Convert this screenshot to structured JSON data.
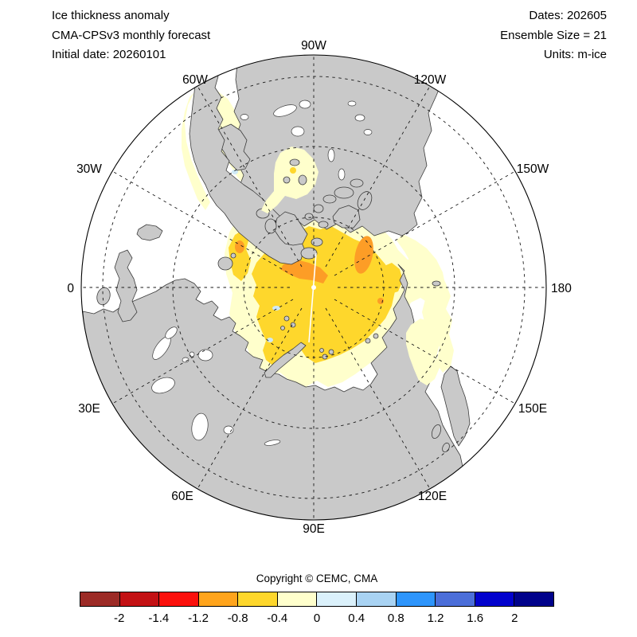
{
  "header": {
    "left": {
      "line1": "Ice thickness anomaly",
      "line2": "CMA-CPSv3 monthly forecast",
      "line3": "Initial date: 20260101"
    },
    "right": {
      "line1": "Dates: 202605",
      "line2": "Ensemble Size = 21",
      "line3": "Units: m-ice"
    }
  },
  "map": {
    "copyright": "Copyright © CEMC, CMA",
    "lon_labels": [
      "90W",
      "60W",
      "120W",
      "30W",
      "150W",
      "0",
      "180",
      "30E",
      "150E",
      "60E",
      "120E",
      "90E"
    ]
  },
  "colorbar": {
    "units": "m-ice",
    "bin_edges": [
      -2,
      -1.4,
      -1.2,
      -0.8,
      -0.4,
      0,
      0.4,
      0.8,
      1.2,
      1.6,
      2
    ],
    "tick_labels": [
      "-2",
      "-1.4",
      "-1.2",
      "-0.8",
      "-0.4",
      "0",
      "0.4",
      "0.8",
      "1.2",
      "1.6",
      "2"
    ],
    "colors": [
      "#9c2b26",
      "#c31114",
      "#fb100c",
      "#ffa41c",
      "#fed72c",
      "#ffffcc",
      "#dbf1fb",
      "#a9d3f3",
      "#2e95fb",
      "#4b6ed9",
      "#0202cd",
      "#00028b"
    ]
  },
  "theme": {
    "land": "#c9c9c9",
    "coast": "#3c3c3c",
    "ocean": "#ffffff",
    "ice_neg_weak": "#ffffcc",
    "ice_neg_mod": "#fed72c",
    "ice_neg_strong": "#fd9d26",
    "ice_pos_weak": "#cfe9f7"
  }
}
